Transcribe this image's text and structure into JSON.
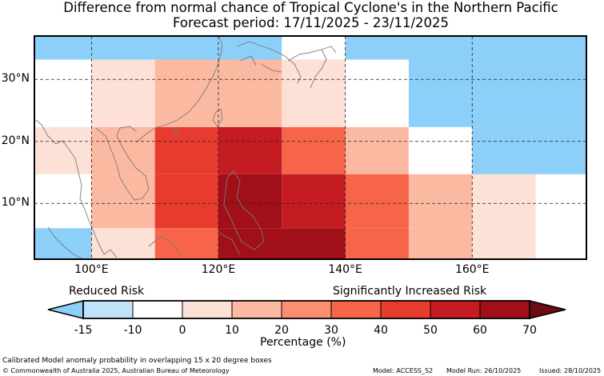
{
  "title": "Difference from normal chance of Tropical Cyclone's in the Northern Pacific",
  "subtitle": "Forecast period: 17/11/2025 - 23/11/2025",
  "map": {
    "lon_range": [
      91,
      178
    ],
    "lat_range": [
      1,
      37
    ],
    "grid_lons": [
      100,
      120,
      140,
      160
    ],
    "grid_lats": [
      10,
      20,
      30
    ],
    "lon_labels": [
      "100°E",
      "120°E",
      "140°E",
      "160°E"
    ],
    "lat_labels": [
      "10°N",
      "20°N",
      "30°N"
    ],
    "cells": [
      {
        "lon0": 91,
        "lon1": 100,
        "lat0": 33.2,
        "lat1": 37,
        "anomaly": "-15 to -10"
      },
      {
        "lon0": 100,
        "lon1": 130,
        "lat0": 33.2,
        "lat1": 37,
        "anomaly": "-15 to -10"
      },
      {
        "lon0": 130,
        "lon1": 140,
        "lat0": 33.2,
        "lat1": 37,
        "anomaly": "-10 to 0"
      },
      {
        "lon0": 140,
        "lon1": 178,
        "lat0": 33.2,
        "lat1": 37,
        "anomaly": "-15 to -10"
      },
      {
        "lon0": 91,
        "lon1": 100,
        "lat0": 22.3,
        "lat1": 33.2,
        "anomaly": "-10 to 0"
      },
      {
        "lon0": 100,
        "lon1": 110,
        "lat0": 22.3,
        "lat1": 33.2,
        "anomaly": "0 to 10"
      },
      {
        "lon0": 110,
        "lon1": 130,
        "lat0": 22.3,
        "lat1": 33.2,
        "anomaly": "10 to 20"
      },
      {
        "lon0": 130,
        "lon1": 140,
        "lat0": 22.3,
        "lat1": 33.2,
        "anomaly": "0 to 10"
      },
      {
        "lon0": 140,
        "lon1": 150,
        "lat0": 22.3,
        "lat1": 33.2,
        "anomaly": "-10 to 0"
      },
      {
        "lon0": 150,
        "lon1": 178,
        "lat0": 22.3,
        "lat1": 33.2,
        "anomaly": "-15 to -10"
      },
      {
        "lon0": 91,
        "lon1": 100,
        "lat0": 14.7,
        "lat1": 22.3,
        "anomaly": "0 to 10"
      },
      {
        "lon0": 100,
        "lon1": 110,
        "lat0": 14.7,
        "lat1": 22.3,
        "anomaly": "10 to 20"
      },
      {
        "lon0": 110,
        "lon1": 120,
        "lat0": 14.7,
        "lat1": 22.3,
        "anomaly": "40 to 50"
      },
      {
        "lon0": 120,
        "lon1": 130,
        "lat0": 14.7,
        "lat1": 22.3,
        "anomaly": "50 to 60"
      },
      {
        "lon0": 130,
        "lon1": 140,
        "lat0": 14.7,
        "lat1": 22.3,
        "anomaly": "30 to 40"
      },
      {
        "lon0": 140,
        "lon1": 150,
        "lat0": 14.7,
        "lat1": 22.3,
        "anomaly": "10 to 20"
      },
      {
        "lon0": 150,
        "lon1": 160,
        "lat0": 14.7,
        "lat1": 22.3,
        "anomaly": "-10 to 0"
      },
      {
        "lon0": 160,
        "lon1": 178,
        "lat0": 14.7,
        "lat1": 22.3,
        "anomaly": "-15 to -10"
      },
      {
        "lon0": 91,
        "lon1": 100,
        "lat0": 6,
        "lat1": 14.7,
        "anomaly": "-10 to 0"
      },
      {
        "lon0": 100,
        "lon1": 110,
        "lat0": 6,
        "lat1": 14.7,
        "anomaly": "10 to 20"
      },
      {
        "lon0": 110,
        "lon1": 120,
        "lat0": 6,
        "lat1": 14.7,
        "anomaly": "40 to 50"
      },
      {
        "lon0": 120,
        "lon1": 130,
        "lat0": 6,
        "lat1": 14.7,
        "anomaly": "60 to 70"
      },
      {
        "lon0": 130,
        "lon1": 140,
        "lat0": 6,
        "lat1": 14.7,
        "anomaly": "50 to 60"
      },
      {
        "lon0": 140,
        "lon1": 150,
        "lat0": 6,
        "lat1": 14.7,
        "anomaly": "30 to 40"
      },
      {
        "lon0": 150,
        "lon1": 160,
        "lat0": 6,
        "lat1": 14.7,
        "anomaly": "10 to 20"
      },
      {
        "lon0": 160,
        "lon1": 170,
        "lat0": 6,
        "lat1": 14.7,
        "anomaly": "0 to 10"
      },
      {
        "lon0": 170,
        "lon1": 178,
        "lat0": 6,
        "lat1": 14.7,
        "anomaly": "-10 to 0"
      },
      {
        "lon0": 91,
        "lon1": 100,
        "lat0": 1,
        "lat1": 6,
        "anomaly": "-15 to -10"
      },
      {
        "lon0": 100,
        "lon1": 110,
        "lat0": 1,
        "lat1": 6,
        "anomaly": "0 to 10"
      },
      {
        "lon0": 110,
        "lon1": 120,
        "lat0": 1,
        "lat1": 6,
        "anomaly": "30 to 40"
      },
      {
        "lon0": 120,
        "lon1": 140,
        "lat0": 1,
        "lat1": 6,
        "anomaly": "60 to 70"
      },
      {
        "lon0": 140,
        "lon1": 150,
        "lat0": 1,
        "lat1": 6,
        "anomaly": "30 to 40"
      },
      {
        "lon0": 150,
        "lon1": 160,
        "lat0": 1,
        "lat1": 6,
        "anomaly": "10 to 20"
      },
      {
        "lon0": 160,
        "lon1": 170,
        "lat0": 1,
        "lat1": 6,
        "anomaly": "0 to 10"
      },
      {
        "lon0": 170,
        "lon1": 178,
        "lat0": 1,
        "lat1": 6,
        "anomaly": "-10 to 0"
      }
    ]
  },
  "colorbar": {
    "reduced_label": "Reduced Risk",
    "increased_label": "Significantly Increased Risk",
    "axis_label": "Percentage (%)",
    "ticks": [
      "-15",
      "-10",
      "0",
      "10",
      "20",
      "30",
      "40",
      "50",
      "60",
      "70"
    ],
    "under_color": "#8ccff8",
    "over_color": "#6e0a12",
    "colors": [
      "#bfe3fb",
      "#ffffff",
      "#fde0d6",
      "#fcb9a2",
      "#fb8f6f",
      "#f6654a",
      "#e63b2e",
      "#c41c22",
      "#a10f18"
    ],
    "bins": [
      "-15 to -10",
      "-10 to 0",
      "0 to 10",
      "10 to 20",
      "20 to 30",
      "30 to 40",
      "40 to 50",
      "50 to 60",
      "60 to 70"
    ]
  },
  "footer": {
    "note": "Calibrated Model anomaly probability in overlapping 15 x 20 degree boxes",
    "copyright": "© Commonwealth of Australia 2025, Australian Bureau of Meteorology",
    "model": "Model: ACCESS_S2",
    "run": "Model Run: 26/10/2025",
    "issued": "Issued: 28/10/2025"
  }
}
